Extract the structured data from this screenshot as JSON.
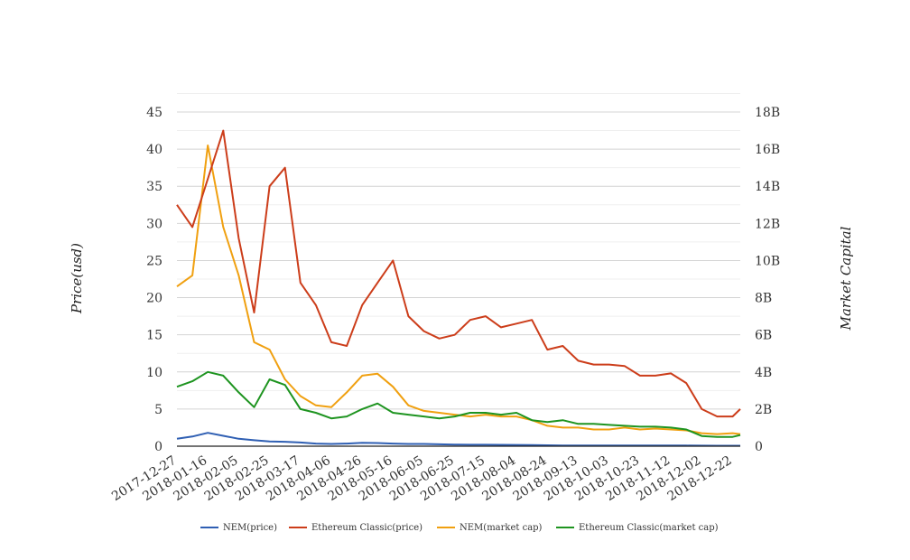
{
  "chart_data": {
    "type": "line",
    "ylabel_left": "Price(usd)",
    "ylabel_right": "Market Capital",
    "y_left_ticks": [
      "0",
      "5",
      "10",
      "15",
      "20",
      "25",
      "30",
      "35",
      "40",
      "45"
    ],
    "y_right_ticks": [
      "0",
      "2B",
      "4B",
      "6B",
      "8B",
      "10B",
      "12B",
      "14B",
      "16B",
      "18B"
    ],
    "ylim_left": [
      0,
      45
    ],
    "ylim_right": [
      0,
      18000000000
    ],
    "grid": true,
    "legend_position": "bottom",
    "x_ticks": [
      "2017-12-27",
      "2018-01-16",
      "2018-02-05",
      "2018-02-25",
      "2018-03-17",
      "2018-04-06",
      "2018-04-26",
      "2018-05-16",
      "2018-06-05",
      "2018-06-25",
      "2018-07-15",
      "2018-08-04",
      "2018-08-24",
      "2018-09-13",
      "2018-10-03",
      "2018-10-23",
      "2018-11-12",
      "2018-12-02",
      "2018-12-22"
    ],
    "x": [
      "2017-12-27",
      "2018-01-06",
      "2018-01-16",
      "2018-01-26",
      "2018-02-05",
      "2018-02-15",
      "2018-02-25",
      "2018-03-07",
      "2018-03-17",
      "2018-03-27",
      "2018-04-06",
      "2018-04-16",
      "2018-04-26",
      "2018-05-06",
      "2018-05-16",
      "2018-05-26",
      "2018-06-05",
      "2018-06-15",
      "2018-06-25",
      "2018-07-05",
      "2018-07-15",
      "2018-07-25",
      "2018-08-04",
      "2018-08-14",
      "2018-08-24",
      "2018-09-03",
      "2018-09-13",
      "2018-09-23",
      "2018-10-03",
      "2018-10-13",
      "2018-10-23",
      "2018-11-02",
      "2018-11-12",
      "2018-11-22",
      "2018-12-02",
      "2018-12-12",
      "2018-12-22",
      "2018-12-27"
    ],
    "series": [
      {
        "name": "NEM(price)",
        "color": "#2f5fb3",
        "axis": "left",
        "values": [
          1.0,
          1.3,
          1.8,
          1.4,
          1.0,
          0.8,
          0.65,
          0.6,
          0.5,
          0.35,
          0.3,
          0.35,
          0.45,
          0.42,
          0.35,
          0.3,
          0.3,
          0.25,
          0.22,
          0.2,
          0.2,
          0.18,
          0.17,
          0.15,
          0.12,
          0.1,
          0.1,
          0.1,
          0.1,
          0.1,
          0.1,
          0.1,
          0.1,
          0.08,
          0.07,
          0.06,
          0.06,
          0.06
        ]
      },
      {
        "name": "Ethereum Classic(price)",
        "color": "#cc3d1a",
        "axis": "left",
        "values": [
          32.5,
          29.5,
          36.0,
          42.5,
          28.0,
          18.0,
          35.0,
          37.5,
          22.0,
          19.0,
          14.0,
          13.5,
          19.0,
          22.0,
          25.0,
          17.5,
          15.5,
          14.5,
          15.0,
          17.0,
          17.5,
          16.0,
          16.5,
          17.0,
          13.0,
          13.5,
          11.5,
          11.0,
          11.0,
          10.8,
          9.5,
          9.5,
          9.8,
          8.5,
          5.0,
          4.0,
          4.0,
          5.0
        ]
      },
      {
        "name": "NEM(market cap)",
        "color": "#f0a010",
        "axis": "right",
        "values": [
          8600000000,
          9200000000,
          16200000000,
          11800000000,
          9200000000,
          5600000000,
          5200000000,
          3600000000,
          2700000000,
          2200000000,
          2100000000,
          2900000000,
          3800000000,
          3900000000,
          3200000000,
          2200000000,
          1900000000,
          1800000000,
          1700000000,
          1600000000,
          1700000000,
          1600000000,
          1600000000,
          1400000000,
          1100000000,
          1000000000,
          1000000000,
          900000000,
          900000000,
          1000000000,
          900000000,
          950000000,
          900000000,
          850000000,
          700000000,
          650000000,
          700000000,
          650000000
        ]
      },
      {
        "name": "Ethereum Classic(market cap)",
        "color": "#1e9420",
        "axis": "right",
        "values": [
          3200000000,
          3500000000,
          4000000000,
          3800000000,
          2900000000,
          2100000000,
          3600000000,
          3300000000,
          2000000000,
          1800000000,
          1500000000,
          1600000000,
          2000000000,
          2300000000,
          1800000000,
          1700000000,
          1600000000,
          1500000000,
          1600000000,
          1800000000,
          1800000000,
          1700000000,
          1800000000,
          1400000000,
          1300000000,
          1400000000,
          1200000000,
          1200000000,
          1150000000,
          1100000000,
          1050000000,
          1050000000,
          1000000000,
          900000000,
          550000000,
          500000000,
          500000000,
          600000000
        ]
      }
    ]
  }
}
